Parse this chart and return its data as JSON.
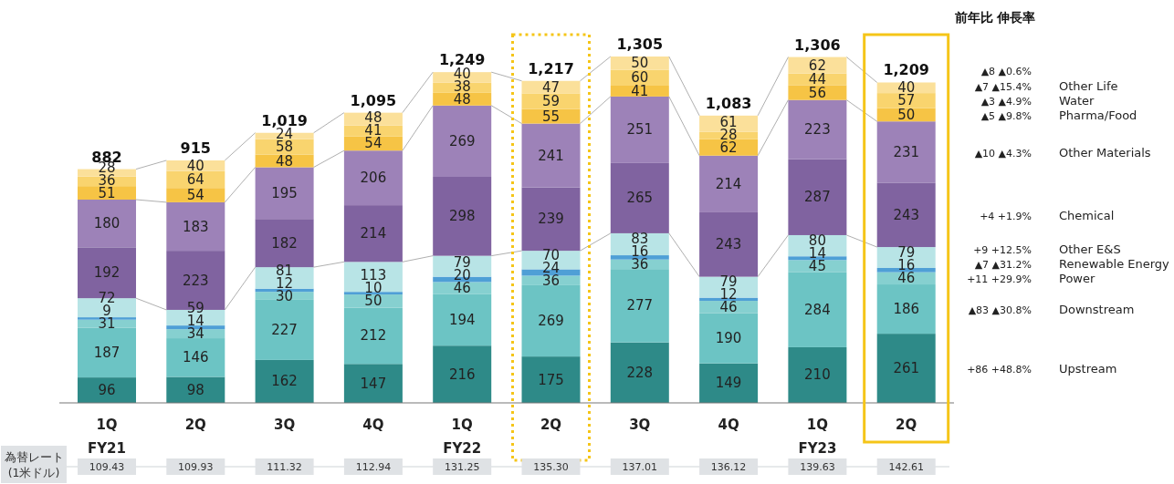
{
  "chart_data": {
    "type": "bar",
    "stacked": true,
    "data_labels": true,
    "categories": [
      "1Q",
      "2Q",
      "3Q",
      "4Q",
      "1Q",
      "2Q",
      "3Q",
      "4Q",
      "1Q",
      "2Q"
    ],
    "series": [
      {
        "name": "Upstream",
        "color": "#2e8a88",
        "values": [
          96,
          98,
          162,
          147,
          216,
          175,
          228,
          149,
          210,
          261
        ]
      },
      {
        "name": "Downstream",
        "color": "#6cc4c4",
        "values": [
          187,
          146,
          227,
          212,
          194,
          269,
          277,
          190,
          284,
          186
        ]
      },
      {
        "name": "Power",
        "color": "#86d0d0",
        "values": [
          31,
          34,
          30,
          50,
          46,
          36,
          36,
          46,
          45,
          46
        ]
      },
      {
        "name": "Renewable Energy",
        "color": "#4f9fd6",
        "values": [
          9,
          14,
          12,
          10,
          20,
          24,
          16,
          12,
          14,
          16
        ]
      },
      {
        "name": "Other E&S",
        "color": "#b8e4e6",
        "values": [
          72,
          59,
          81,
          113,
          79,
          70,
          83,
          79,
          80,
          79
        ]
      },
      {
        "name": "Chemical",
        "color": "#8063a0",
        "values": [
          192,
          223,
          182,
          214,
          298,
          239,
          265,
          243,
          287,
          243
        ]
      },
      {
        "name": "Other Materials",
        "color": "#9d82b8",
        "values": [
          180,
          183,
          195,
          206,
          269,
          241,
          251,
          214,
          223,
          231
        ]
      },
      {
        "name": "Pharma/Food",
        "color": "#f6c445",
        "values": [
          51,
          54,
          48,
          54,
          48,
          55,
          41,
          62,
          56,
          50
        ]
      },
      {
        "name": "Water",
        "color": "#f9d46e",
        "values": [
          36,
          64,
          58,
          41,
          38,
          59,
          60,
          28,
          44,
          57
        ]
      },
      {
        "name": "Other Life",
        "color": "#fbe09a",
        "values": [
          28,
          40,
          24,
          48,
          40,
          47,
          50,
          61,
          62,
          40
        ]
      }
    ],
    "totals": [
      "882",
      "915",
      "1,019",
      "1,095",
      "1,249",
      "1,217",
      "1,305",
      "1,083",
      "1,306",
      "1,209"
    ],
    "annotations": [
      "前年比 伸長率",
      "▲8 ▲0.6%",
      "+86 +48.8%",
      "▲83 ▲30.8%",
      "+11 +29.9%",
      "▲7 ▲31.2%",
      "+9 +12.5%",
      "+4 +1.9%",
      "▲10 ▲4.3%",
      "▲5 ▲9.8%",
      "▲3 ▲4.9%",
      "▲7 ▲15.4%",
      "FY21",
      "FY22",
      "FY23",
      "為替レート (1米ドル)",
      "109.43",
      "109.93",
      "111.32",
      "112.94",
      "131.25",
      "135.30",
      "137.01",
      "136.12",
      "139.63",
      "142.61"
    ]
  }
}
